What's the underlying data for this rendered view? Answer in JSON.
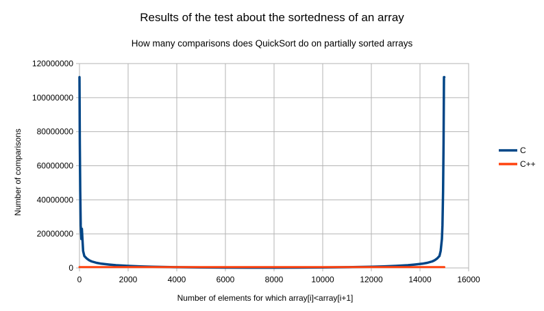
{
  "chart_data": {
    "type": "line",
    "title": "Results of the test about the sortedness of an array",
    "subtitle": "How many comparisons does QuickSort do on partially sorted arrays",
    "xlabel": "Number of elements for which array[i]<array[i+1]",
    "ylabel": "Number of comparisons",
    "xlim": [
      0,
      16000
    ],
    "ylim": [
      0,
      120000000
    ],
    "xticks": [
      0,
      2000,
      4000,
      6000,
      8000,
      10000,
      12000,
      14000,
      16000
    ],
    "yticks": [
      0,
      20000000,
      40000000,
      60000000,
      80000000,
      100000000,
      120000000
    ],
    "grid": true,
    "legend_position": "right",
    "series": [
      {
        "name": "C",
        "color": "#004586",
        "x": [
          0,
          15,
          30,
          50,
          75,
          100,
          150,
          200,
          300,
          400,
          500,
          700,
          900,
          1200,
          1500,
          2000,
          2500,
          3000,
          4000,
          5000,
          6000,
          7000,
          7500,
          8000,
          9000,
          10000,
          11000,
          12000,
          12500,
          13000,
          13500,
          13800,
          14100,
          14300,
          14500,
          14600,
          14700,
          14800,
          14850,
          14900,
          14925,
          14950,
          14970,
          14985,
          14999
        ],
        "y": [
          112000000,
          73000000,
          45000000,
          25000000,
          17000000,
          23000000,
          10000000,
          7000000,
          5500000,
          4500000,
          3800000,
          3000000,
          2500000,
          2000000,
          1600000,
          1200000,
          900000,
          700000,
          450000,
          300000,
          220000,
          180000,
          170000,
          180000,
          220000,
          300000,
          450000,
          700000,
          900000,
          1200000,
          1600000,
          2000000,
          2500000,
          3000000,
          3800000,
          4500000,
          5500000,
          7000000,
          10000000,
          17000000,
          25000000,
          45000000,
          73000000,
          112000000,
          112000000
        ]
      },
      {
        "name": "C++",
        "color": "#ff420e",
        "x": [
          0,
          15000
        ],
        "y": [
          500000,
          500000
        ]
      }
    ]
  }
}
